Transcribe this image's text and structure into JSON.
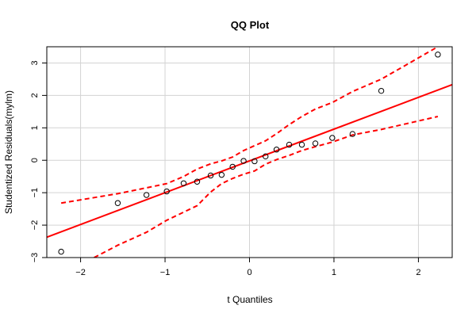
{
  "chart_data": {
    "type": "scatter",
    "title": "QQ Plot",
    "xlabel": "t Quantiles",
    "ylabel": "Studentized Residuals(mylm)",
    "xlim": [
      -2.4,
      2.4
    ],
    "ylim": [
      -3.0,
      3.5
    ],
    "x_ticks": [
      -2,
      -1,
      0,
      1,
      2
    ],
    "y_ticks": [
      -3,
      -2,
      -1,
      0,
      1,
      2,
      3
    ],
    "x_tick_labels": [
      "−2",
      "−1",
      "0",
      "1",
      "2"
    ],
    "y_tick_labels": [
      "−3",
      "−2",
      "−1",
      "0",
      "1",
      "2",
      "3"
    ],
    "grid": true,
    "points": [
      {
        "x": -2.23,
        "y": -2.82
      },
      {
        "x": -1.56,
        "y": -1.32
      },
      {
        "x": -1.22,
        "y": -1.07
      },
      {
        "x": -0.98,
        "y": -0.96
      },
      {
        "x": -0.78,
        "y": -0.71
      },
      {
        "x": -0.62,
        "y": -0.66
      },
      {
        "x": -0.46,
        "y": -0.47
      },
      {
        "x": -0.33,
        "y": -0.45
      },
      {
        "x": -0.2,
        "y": -0.2
      },
      {
        "x": -0.07,
        "y": -0.02
      },
      {
        "x": 0.06,
        "y": -0.03
      },
      {
        "x": 0.19,
        "y": 0.12
      },
      {
        "x": 0.32,
        "y": 0.33
      },
      {
        "x": 0.47,
        "y": 0.48
      },
      {
        "x": 0.62,
        "y": 0.48
      },
      {
        "x": 0.78,
        "y": 0.52
      },
      {
        "x": 0.98,
        "y": 0.69
      },
      {
        "x": 1.22,
        "y": 0.81
      },
      {
        "x": 1.56,
        "y": 2.14
      },
      {
        "x": 2.23,
        "y": 3.26
      }
    ],
    "reference_line": {
      "slope": 0.98,
      "intercept": -0.02,
      "color": "#ff0000"
    },
    "confidence_band": {
      "color": "#ff0000",
      "style": "dashed",
      "upper": [
        {
          "x": -2.23,
          "y": -1.32
        },
        {
          "x": -1.56,
          "y": -1.03
        },
        {
          "x": -1.22,
          "y": -0.85
        },
        {
          "x": -0.98,
          "y": -0.72
        },
        {
          "x": -0.78,
          "y": -0.5
        },
        {
          "x": -0.62,
          "y": -0.27
        },
        {
          "x": -0.46,
          "y": -0.11
        },
        {
          "x": -0.33,
          "y": -0.02
        },
        {
          "x": -0.2,
          "y": 0.1
        },
        {
          "x": -0.07,
          "y": 0.3
        },
        {
          "x": 0.06,
          "y": 0.45
        },
        {
          "x": 0.19,
          "y": 0.6
        },
        {
          "x": 0.32,
          "y": 0.82
        },
        {
          "x": 0.47,
          "y": 1.1
        },
        {
          "x": 0.62,
          "y": 1.35
        },
        {
          "x": 0.78,
          "y": 1.58
        },
        {
          "x": 0.98,
          "y": 1.78
        },
        {
          "x": 1.22,
          "y": 2.12
        },
        {
          "x": 1.56,
          "y": 2.5
        },
        {
          "x": 2.23,
          "y": 3.5
        }
      ],
      "lower": [
        {
          "x": -1.84,
          "y": -3.0
        },
        {
          "x": -1.56,
          "y": -2.62
        },
        {
          "x": -1.22,
          "y": -2.22
        },
        {
          "x": -0.98,
          "y": -1.85
        },
        {
          "x": -0.78,
          "y": -1.6
        },
        {
          "x": -0.62,
          "y": -1.4
        },
        {
          "x": -0.46,
          "y": -0.98
        },
        {
          "x": -0.33,
          "y": -0.72
        },
        {
          "x": -0.2,
          "y": -0.56
        },
        {
          "x": -0.07,
          "y": -0.43
        },
        {
          "x": 0.06,
          "y": -0.33
        },
        {
          "x": 0.19,
          "y": -0.12
        },
        {
          "x": 0.32,
          "y": 0.02
        },
        {
          "x": 0.47,
          "y": 0.15
        },
        {
          "x": 0.62,
          "y": 0.3
        },
        {
          "x": 0.78,
          "y": 0.42
        },
        {
          "x": 0.98,
          "y": 0.56
        },
        {
          "x": 1.22,
          "y": 0.78
        },
        {
          "x": 1.56,
          "y": 0.95
        },
        {
          "x": 2.23,
          "y": 1.35
        }
      ]
    }
  }
}
